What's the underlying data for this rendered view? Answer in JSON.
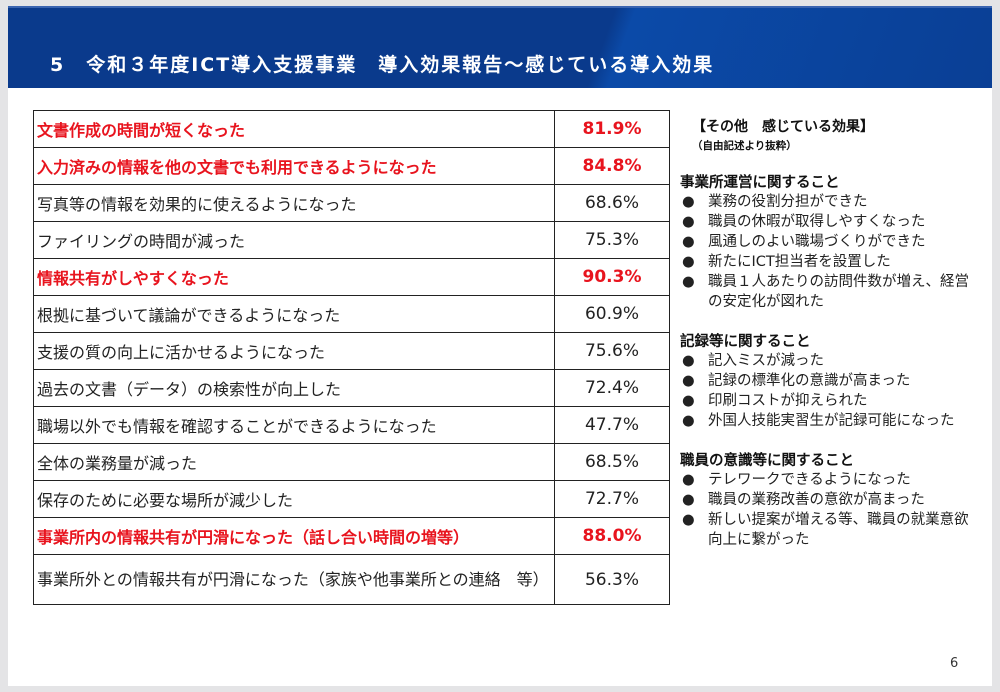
{
  "title": "5　令和３年度ICT導入支援事業　導入効果報告～感じている導入効果",
  "table": [
    {
      "label": "文書作成の時間が短くなった",
      "value": "81.9%",
      "highlight": true
    },
    {
      "label": "入力済みの情報を他の文書でも利用できるようになった",
      "value": "84.8%",
      "highlight": true
    },
    {
      "label": "写真等の情報を効果的に使えるようになった",
      "value": "68.6%",
      "highlight": false
    },
    {
      "label": "ファイリングの時間が減った",
      "value": "75.3%",
      "highlight": false
    },
    {
      "label": "情報共有がしやすくなった",
      "value": "90.3%",
      "highlight": true
    },
    {
      "label": "根拠に基づいて議論ができるようになった",
      "value": "60.9%",
      "highlight": false
    },
    {
      "label": "支援の質の向上に活かせるようになった",
      "value": "75.6%",
      "highlight": false
    },
    {
      "label": "過去の文書（データ）の検索性が向上した",
      "value": "72.4%",
      "highlight": false
    },
    {
      "label": "職場以外でも情報を確認することができるようになった",
      "value": "47.7%",
      "highlight": false
    },
    {
      "label": "全体の業務量が減った",
      "value": "68.5%",
      "highlight": false
    },
    {
      "label": "保存のために必要な場所が減少した",
      "value": "72.7%",
      "highlight": false
    },
    {
      "label": "事業所内の情報共有が円滑になった（話し合い時間の増等）",
      "value": "88.0%",
      "highlight": true
    },
    {
      "label": "事業所外との情報共有が円滑になった（家族や他事業所との連絡　等）",
      "value": "56.3%",
      "highlight": false
    }
  ],
  "side": {
    "heading": "【その他　感じている効果】",
    "subheading": "（自由記述より抜粋）",
    "sections": [
      {
        "title": "事業所運営に関すること",
        "items": [
          "業務の役割分担ができた",
          "職員の休暇が取得しやすくなった",
          "風通しのよい職場づくりができた",
          "新たにICT担当者を設置した",
          "職員１人あたりの訪問件数が増え、経営の安定化が図れた"
        ]
      },
      {
        "title": "記録等に関すること",
        "items": [
          "記入ミスが減った",
          "記録の標準化の意識が高まった",
          "印刷コストが抑えられた",
          "外国人技能実習生が記録可能になった"
        ]
      },
      {
        "title": "職員の意識等に関すること",
        "items": [
          "テレワークできるようになった",
          "職員の業務改善の意欲が高まった",
          "新しい提案が増える等、職員の就業意欲向上に繋がった"
        ]
      }
    ]
  },
  "page_number": "6",
  "colors": {
    "header": "#0a3a8c",
    "highlight": "#e8141e"
  }
}
